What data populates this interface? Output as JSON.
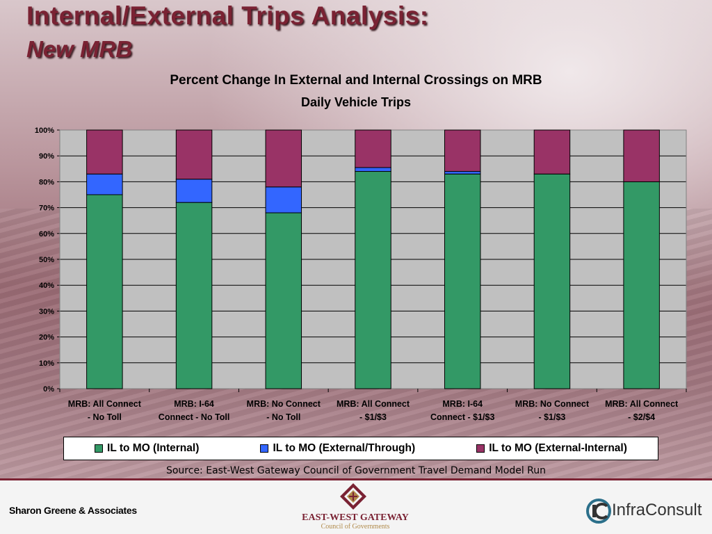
{
  "slide": {
    "title_line1": "Internal/External Trips Analysis:",
    "title_line2": "New MRB",
    "source": "Source: East-West Gateway Council of Government Travel Demand Model Run"
  },
  "footer": {
    "left_text": "Sharon Greene & Associates",
    "center_name": "EAST-WEST GATEWAY",
    "center_sub": "Council of Governments",
    "right_text": "InfraConsult"
  },
  "chart_data": {
    "type": "bar",
    "stacked": true,
    "title": "Percent Change In External and Internal Crossings on MRB",
    "subtitle": "Daily Vehicle Trips",
    "categories": [
      [
        "MRB: All Connect",
        "- No Toll"
      ],
      [
        "MRB: I-64",
        "Connect - No Toll"
      ],
      [
        "MRB: No Connect",
        "- No Toll"
      ],
      [
        "MRB: All Connect",
        "-  $1/$3"
      ],
      [
        "MRB: I-64",
        "Connect - $1/$3"
      ],
      [
        "MRB: No Connect",
        "- $1/$3"
      ],
      [
        "MRB: All Connect",
        "- $2/$4"
      ]
    ],
    "series": [
      {
        "name": "IL to MO (Internal)",
        "color": "#339966",
        "values": [
          75,
          72,
          68,
          84,
          83,
          83,
          80
        ]
      },
      {
        "name": "IL to MO (External/Through)",
        "color": "#3366ff",
        "values": [
          8,
          9,
          10,
          1.5,
          1,
          0,
          0
        ]
      },
      {
        "name": "IL to MO (External-Internal)",
        "color": "#993366",
        "values": [
          17,
          19,
          22,
          14.5,
          16,
          17,
          20
        ]
      }
    ],
    "ylim": [
      0,
      100
    ],
    "yticks": [
      "0%",
      "10%",
      "20%",
      "30%",
      "40%",
      "50%",
      "60%",
      "70%",
      "80%",
      "90%",
      "100%"
    ],
    "grid": true,
    "legend": "bottom"
  }
}
